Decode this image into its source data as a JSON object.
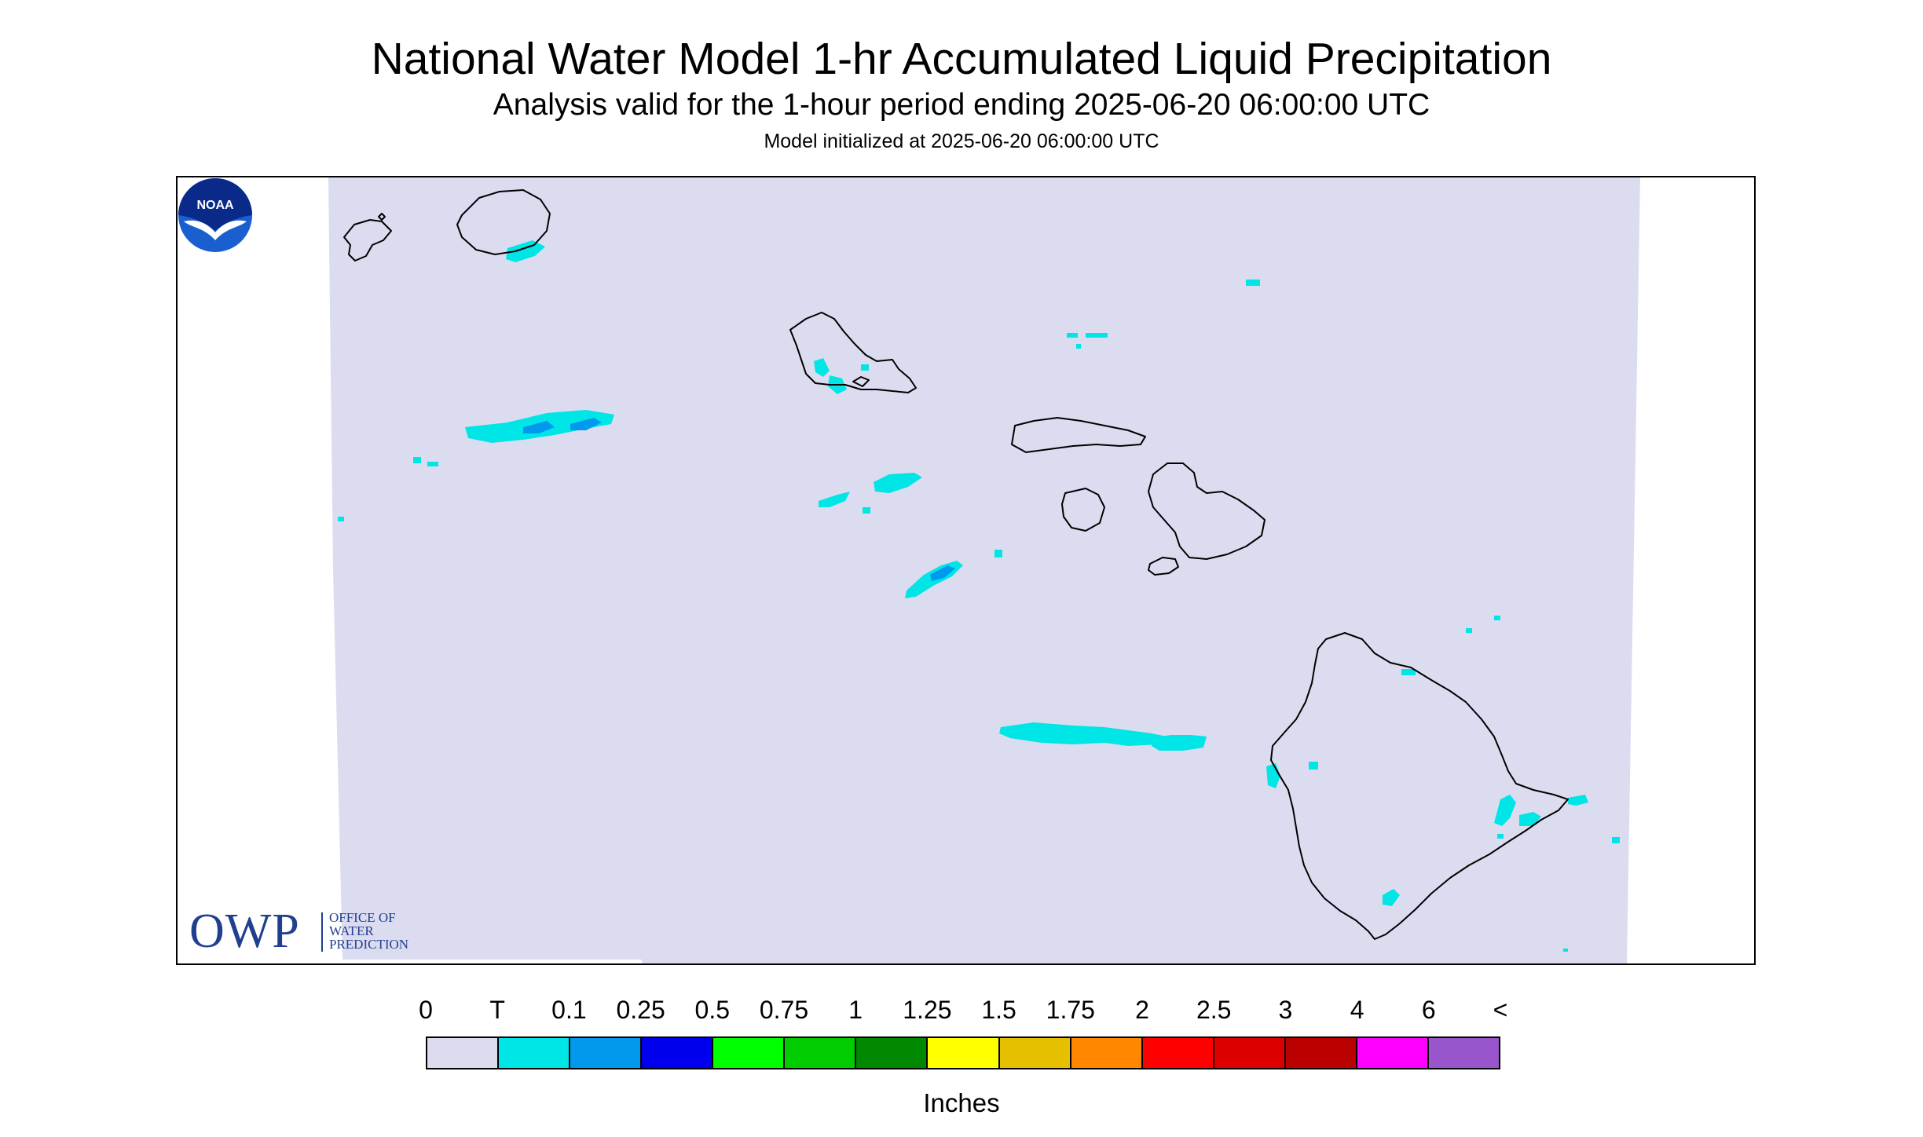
{
  "header": {
    "title": "National Water Model 1-hr Accumulated Liquid Precipitation",
    "subtitle": "Analysis valid for the 1-hour period ending 2025-06-20 06:00:00 UTC",
    "init_line": "Model initialized at 2025-06-20 06:00:00 UTC"
  },
  "map": {
    "region": "Hawaiian Islands",
    "background_color": "#dcdcf0",
    "coast_color": "#000000",
    "precip_color_trace": "#00e5e5",
    "precip_color_light": "#0099ee",
    "islands": [
      "Niihau",
      "Kauai",
      "Oahu",
      "Molokai",
      "Lanai",
      "Maui",
      "Kahoolawe",
      "Hawaii"
    ]
  },
  "logos": {
    "owp_big": "OWP",
    "owp_line1": "OFFICE OF",
    "owp_line2": "WATER",
    "owp_line3": "PREDICTION",
    "noaa": "NOAA"
  },
  "legend": {
    "labels": [
      "0",
      "T",
      "0.1",
      "0.25",
      "0.5",
      "0.75",
      "1",
      "1.25",
      "1.5",
      "1.75",
      "2",
      "2.5",
      "3",
      "4",
      "6",
      "<"
    ],
    "colors": [
      "#dcdcf0",
      "#00e5e5",
      "#0099ee",
      "#0000ee",
      "#00ff00",
      "#00cc00",
      "#008800",
      "#ffff00",
      "#e6bf00",
      "#ff8800",
      "#ff0000",
      "#dd0000",
      "#bb0000",
      "#ff00ff",
      "#9955cc"
    ],
    "units": "Inches"
  }
}
